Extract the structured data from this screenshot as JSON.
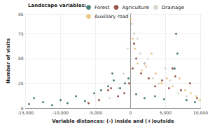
{
  "chart_data": {
    "type": "scatter",
    "x_label": "Variable distances: (-) inside and (+)outside",
    "y_label": "Number of visits",
    "legend_title": "Landscape variables:",
    "legend": "top",
    "grid": true,
    "marker": "circle",
    "xlim": [
      -15000,
      10000
    ],
    "xticks": [
      -15000,
      -10000,
      -5000,
      0,
      5000,
      10000
    ],
    "ylim": [
      0,
      95
    ],
    "yticks": [
      0,
      25,
      50,
      75
    ],
    "series": [
      {
        "name": "Forest",
        "color": "#2f6b66",
        "x": [
          -14500,
          -13800,
          -12500,
          -11200,
          -10000,
          -9000,
          -7800,
          -6500,
          -5200,
          -4200,
          -3200,
          -2600,
          -2400,
          -1500,
          -800,
          -300,
          800,
          2000,
          3500,
          4800,
          6300,
          6500,
          6700,
          8000,
          9200
        ],
        "values": [
          4,
          10,
          6,
          3,
          8,
          5,
          12,
          7,
          15,
          18,
          22,
          35,
          28,
          20,
          25,
          30,
          14,
          10,
          12,
          9,
          40,
          75,
          55,
          8,
          6
        ]
      },
      {
        "name": "Agriculture",
        "color": "#8b3a2e",
        "x": [
          -6000,
          -4500,
          -3200,
          -2800,
          -1800,
          -900,
          -200,
          300,
          500,
          800,
          1500,
          2000,
          2600,
          3500,
          4500,
          5500,
          6000,
          6400,
          7200,
          8500,
          9500
        ],
        "values": [
          5,
          8,
          18,
          20,
          12,
          15,
          25,
          40,
          65,
          50,
          35,
          45,
          30,
          22,
          28,
          20,
          40,
          32,
          18,
          25,
          10
        ]
      },
      {
        "name": "Drainage",
        "color": "#d3cfc3",
        "x": [
          -3000,
          -1800,
          -1000,
          -400,
          0,
          200,
          500,
          1000,
          1400,
          2000,
          2500,
          3200,
          4000,
          5000,
          5600,
          6800,
          8000
        ],
        "values": [
          10,
          20,
          35,
          60,
          95,
          85,
          75,
          70,
          55,
          45,
          50,
          30,
          25,
          40,
          28,
          15,
          12
        ]
      },
      {
        "name": "Auxiliary road",
        "color": "#e6c078",
        "x": [
          0,
          300,
          600,
          1000,
          1600,
          2200,
          3000,
          3600,
          4400,
          5200,
          6000,
          7000,
          7800,
          8600,
          9400,
          9900
        ],
        "values": [
          90,
          70,
          60,
          45,
          38,
          42,
          55,
          35,
          25,
          30,
          22,
          30,
          18,
          15,
          12,
          8
        ]
      }
    ]
  }
}
